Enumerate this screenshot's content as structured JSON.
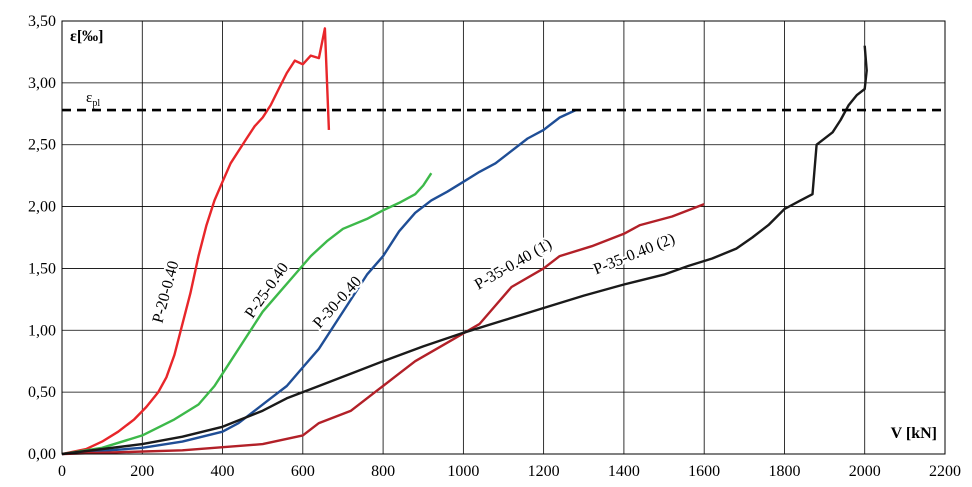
{
  "chart_data": {
    "type": "line",
    "ylabel": "ε[‰]",
    "xlabel": "V [kN]",
    "xlim": [
      0,
      2200
    ],
    "ylim": [
      0,
      3.5
    ],
    "grid": true,
    "x_ticks": [
      0,
      200,
      400,
      600,
      800,
      1000,
      1200,
      1400,
      1600,
      1800,
      2000,
      2200
    ],
    "x_tick_labels": [
      "0",
      "200",
      "400",
      "600",
      "800",
      "1000",
      "1200",
      "1400",
      "1600",
      "1800",
      "2000",
      "2200"
    ],
    "y_ticks": [
      0,
      0.5,
      1.0,
      1.5,
      2.0,
      2.5,
      3.0,
      3.5
    ],
    "y_tick_labels": [
      "0,00",
      "0,50",
      "1,00",
      "1,50",
      "2,00",
      "2,50",
      "3,00",
      "3,50"
    ],
    "reference_line": {
      "label": "εpl",
      "label_main": "ε",
      "label_sub": "pl",
      "y": 2.78,
      "style": "dashed",
      "color": "#000000"
    },
    "series": [
      {
        "name": "P-20-0.40",
        "color": "#e8262a",
        "points": [
          [
            0,
            0
          ],
          [
            60,
            0.04
          ],
          [
            100,
            0.1
          ],
          [
            140,
            0.18
          ],
          [
            180,
            0.28
          ],
          [
            210,
            0.38
          ],
          [
            240,
            0.5
          ],
          [
            260,
            0.62
          ],
          [
            280,
            0.8
          ],
          [
            300,
            1.05
          ],
          [
            320,
            1.3
          ],
          [
            340,
            1.6
          ],
          [
            360,
            1.85
          ],
          [
            380,
            2.05
          ],
          [
            400,
            2.2
          ],
          [
            420,
            2.35
          ],
          [
            440,
            2.45
          ],
          [
            460,
            2.55
          ],
          [
            480,
            2.65
          ],
          [
            500,
            2.72
          ],
          [
            520,
            2.82
          ],
          [
            540,
            2.95
          ],
          [
            560,
            3.08
          ],
          [
            580,
            3.18
          ],
          [
            600,
            3.15
          ],
          [
            620,
            3.22
          ],
          [
            640,
            3.2
          ],
          [
            655,
            3.44
          ],
          [
            665,
            2.62
          ]
        ]
      },
      {
        "name": "P-25-0.40",
        "color": "#3db94a",
        "points": [
          [
            0,
            0
          ],
          [
            100,
            0.05
          ],
          [
            200,
            0.15
          ],
          [
            280,
            0.28
          ],
          [
            340,
            0.4
          ],
          [
            380,
            0.55
          ],
          [
            420,
            0.75
          ],
          [
            460,
            0.95
          ],
          [
            500,
            1.15
          ],
          [
            540,
            1.3
          ],
          [
            580,
            1.45
          ],
          [
            620,
            1.6
          ],
          [
            660,
            1.72
          ],
          [
            700,
            1.82
          ],
          [
            760,
            1.9
          ],
          [
            800,
            1.97
          ],
          [
            840,
            2.03
          ],
          [
            880,
            2.1
          ],
          [
            900,
            2.17
          ],
          [
            920,
            2.27
          ]
        ]
      },
      {
        "name": "P-30-0.40",
        "color": "#1f4e96",
        "points": [
          [
            0,
            0
          ],
          [
            200,
            0.05
          ],
          [
            300,
            0.1
          ],
          [
            400,
            0.18
          ],
          [
            440,
            0.25
          ],
          [
            480,
            0.35
          ],
          [
            520,
            0.45
          ],
          [
            560,
            0.55
          ],
          [
            600,
            0.7
          ],
          [
            640,
            0.85
          ],
          [
            680,
            1.05
          ],
          [
            720,
            1.25
          ],
          [
            760,
            1.45
          ],
          [
            800,
            1.6
          ],
          [
            840,
            1.8
          ],
          [
            880,
            1.95
          ],
          [
            920,
            2.05
          ],
          [
            960,
            2.12
          ],
          [
            1000,
            2.2
          ],
          [
            1040,
            2.28
          ],
          [
            1080,
            2.35
          ],
          [
            1120,
            2.45
          ],
          [
            1160,
            2.55
          ],
          [
            1200,
            2.62
          ],
          [
            1240,
            2.72
          ],
          [
            1280,
            2.78
          ]
        ]
      },
      {
        "name": "P-35-0.40 (1)",
        "color": "#b22028",
        "points": [
          [
            0,
            0
          ],
          [
            300,
            0.03
          ],
          [
            500,
            0.08
          ],
          [
            600,
            0.15
          ],
          [
            640,
            0.25
          ],
          [
            720,
            0.35
          ],
          [
            780,
            0.5
          ],
          [
            840,
            0.65
          ],
          [
            880,
            0.75
          ],
          [
            960,
            0.9
          ],
          [
            1040,
            1.05
          ],
          [
            1080,
            1.2
          ],
          [
            1120,
            1.35
          ],
          [
            1200,
            1.5
          ],
          [
            1240,
            1.6
          ],
          [
            1320,
            1.68
          ],
          [
            1400,
            1.78
          ],
          [
            1440,
            1.85
          ],
          [
            1520,
            1.92
          ],
          [
            1600,
            2.02
          ]
        ]
      },
      {
        "name": "P-35-0.40 (2)",
        "color": "#1a1a1a",
        "points": [
          [
            0,
            0
          ],
          [
            200,
            0.08
          ],
          [
            300,
            0.14
          ],
          [
            400,
            0.22
          ],
          [
            500,
            0.35
          ],
          [
            560,
            0.45
          ],
          [
            640,
            0.55
          ],
          [
            720,
            0.65
          ],
          [
            800,
            0.75
          ],
          [
            900,
            0.87
          ],
          [
            1000,
            0.98
          ],
          [
            1100,
            1.08
          ],
          [
            1200,
            1.18
          ],
          [
            1300,
            1.28
          ],
          [
            1400,
            1.37
          ],
          [
            1500,
            1.45
          ],
          [
            1560,
            1.52
          ],
          [
            1620,
            1.58
          ],
          [
            1680,
            1.66
          ],
          [
            1720,
            1.75
          ],
          [
            1760,
            1.85
          ],
          [
            1800,
            1.98
          ],
          [
            1840,
            2.05
          ],
          [
            1870,
            2.1
          ],
          [
            1880,
            2.5
          ],
          [
            1920,
            2.6
          ],
          [
            1940,
            2.7
          ],
          [
            1960,
            2.82
          ],
          [
            1980,
            2.9
          ],
          [
            2000,
            2.95
          ],
          [
            2005,
            3.1
          ],
          [
            2000,
            3.3
          ]
        ]
      }
    ],
    "annotations": [
      {
        "text": "P-20-0.40",
        "series": "P-20-0.40",
        "at": [
          270,
          1.3
        ],
        "angle": -75
      },
      {
        "text": "P-25-0.40",
        "series": "P-25-0.40",
        "at": [
          520,
          1.3
        ],
        "angle": -55
      },
      {
        "text": "P-30-0.40",
        "series": "P-30-0.40",
        "at": [
          695,
          1.2
        ],
        "angle": -48
      },
      {
        "text": "P-35-0.40 (1)",
        "series": "P-35-0.40 (1)",
        "at": [
          1130,
          1.5
        ],
        "angle": -30
      },
      {
        "text": "P-35-0.40 (2)",
        "series": "P-35-0.40 (2)",
        "at": [
          1430,
          1.58
        ],
        "angle": -22
      }
    ]
  }
}
